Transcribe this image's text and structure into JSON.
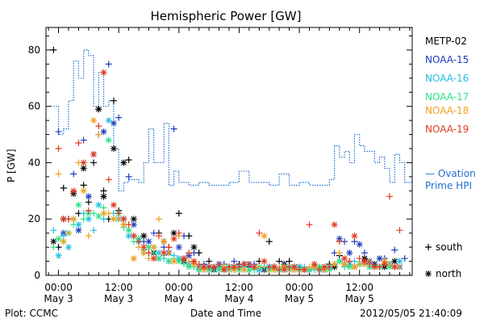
{
  "chart_data": {
    "type": "scatter",
    "title": "Hemispheric Power [GW]",
    "xlabel": "Date and Time",
    "ylabel": "P [GW]",
    "x_units": "hours since May 3 00:00",
    "xlim": [
      -2.5,
      70.5
    ],
    "ylim": [
      0,
      88
    ],
    "yticks": [
      0,
      20,
      40,
      60,
      80
    ],
    "xtick_labels": [
      {
        "x": 0,
        "time": "00:00",
        "date": "May 3"
      },
      {
        "x": 12,
        "time": "12:00",
        "date": "May 3"
      },
      {
        "x": 24,
        "time": "00:00",
        "date": "May 4"
      },
      {
        "x": 36,
        "time": "12:00",
        "date": "May 4"
      },
      {
        "x": 48,
        "time": "00:00",
        "date": "May 5"
      },
      {
        "x": 60,
        "time": "12:00",
        "date": "May 5"
      }
    ],
    "legend": {
      "satellites": [
        {
          "name": "METP-02",
          "color": "#000000"
        },
        {
          "name": "NOAA-15",
          "color": "#1f3fbf"
        },
        {
          "name": "NOAA-16",
          "color": "#1fbfe0"
        },
        {
          "name": "NOAA-17",
          "color": "#2fe08a"
        },
        {
          "name": "NOAA-18",
          "color": "#f0a020"
        },
        {
          "name": "NOAA-19",
          "color": "#e03a20"
        }
      ],
      "ovation_label_1": "— Ovation",
      "ovation_label_2": "Prime HPI",
      "ovation_color": "#1f6fd0",
      "south_label": "south",
      "north_label": "north"
    },
    "ovation_hpi": {
      "x": [
        -1,
        0,
        1,
        2,
        3,
        4,
        5,
        6,
        7,
        8,
        9,
        10,
        11,
        12,
        13,
        14,
        15,
        16,
        17,
        18,
        19,
        20,
        21,
        22,
        23,
        24,
        25,
        26,
        27,
        28,
        29,
        30,
        32,
        34,
        36,
        38,
        40,
        42,
        44,
        46,
        48,
        50,
        52,
        54,
        55,
        56,
        57,
        58,
        59,
        60,
        61,
        62,
        63,
        64,
        65,
        66,
        67,
        68,
        69,
        70
      ],
      "y": [
        60,
        50,
        52,
        62,
        76,
        70,
        80,
        78,
        60,
        72,
        60,
        62,
        45,
        30,
        33,
        34,
        34,
        33,
        40,
        52,
        40,
        40,
        54,
        32,
        37,
        33,
        33,
        32,
        32,
        33,
        33,
        32,
        32,
        33,
        37,
        33,
        33,
        32,
        36,
        32,
        33,
        32,
        32,
        34,
        46,
        42,
        44,
        40,
        50,
        46,
        44,
        44,
        40,
        42,
        38,
        33,
        43,
        40,
        33,
        33
      ]
    },
    "series": [
      {
        "satellite": "METP-02",
        "hemisphere": "south",
        "color": "#000000",
        "x": [
          -1,
          0,
          1,
          2,
          4,
          5,
          6,
          7,
          8,
          9,
          10,
          11,
          12,
          14,
          16,
          18,
          20,
          22,
          24,
          26,
          28,
          30,
          32,
          34,
          36,
          38,
          40,
          42,
          44,
          46,
          48,
          50,
          52,
          54,
          56,
          58,
          60,
          62,
          64,
          66
        ],
        "y": [
          80,
          10,
          31,
          20,
          22,
          32,
          26,
          40,
          59,
          30,
          20,
          62,
          23,
          41,
          12,
          8,
          15,
          10,
          22,
          14,
          8,
          5,
          3,
          3,
          4,
          3,
          5,
          12,
          5,
          5,
          3,
          2,
          3,
          4,
          7,
          5,
          4,
          5,
          3,
          4
        ]
      },
      {
        "satellite": "METP-02",
        "hemisphere": "north",
        "color": "#000000",
        "x": [
          -1,
          1,
          3,
          5,
          7,
          8,
          9,
          11,
          13,
          15,
          17,
          19,
          21,
          23,
          25,
          27,
          29,
          31,
          33,
          35,
          37,
          39,
          41,
          43,
          45,
          47,
          49,
          51,
          53,
          55,
          57,
          59,
          61,
          63,
          65,
          67
        ],
        "y": [
          12,
          20,
          29,
          38,
          43,
          59,
          28,
          45,
          40,
          20,
          14,
          8,
          12,
          15,
          5,
          10,
          3,
          2,
          2,
          3,
          4,
          3,
          2,
          3,
          4,
          3,
          2,
          3,
          2,
          3,
          4,
          3,
          6,
          4,
          3,
          5
        ]
      },
      {
        "satellite": "NOAA-15",
        "hemisphere": "south",
        "color": "#1f3fbf",
        "x": [
          0,
          3,
          5,
          8,
          10,
          12,
          14,
          17,
          19,
          21,
          23,
          25,
          27,
          29,
          31,
          33,
          35,
          37,
          39,
          41,
          43,
          45,
          47,
          49,
          51,
          53,
          55,
          57,
          59,
          61,
          63,
          65,
          67,
          69
        ],
        "y": [
          51,
          36,
          48,
          50,
          75,
          56,
          35,
          12,
          15,
          10,
          52,
          14,
          8,
          4,
          3,
          4,
          5,
          3,
          4,
          2,
          3,
          4,
          3,
          2,
          3,
          2,
          8,
          12,
          12,
          8,
          4,
          6,
          9,
          6
        ]
      },
      {
        "satellite": "NOAA-15",
        "hemisphere": "north",
        "color": "#1f3fbf",
        "x": [
          1,
          4,
          6,
          9,
          11,
          13,
          15,
          18,
          20,
          22,
          24,
          26,
          28,
          30,
          32,
          34,
          36,
          38,
          40,
          42,
          44,
          46,
          48,
          50,
          52,
          54,
          56,
          58,
          60,
          62,
          64,
          66,
          68
        ],
        "y": [
          15,
          16,
          28,
          51,
          54,
          20,
          18,
          12,
          6,
          8,
          10,
          7,
          3,
          3,
          4,
          3,
          3,
          4,
          2,
          3,
          2,
          3,
          3,
          2,
          2,
          3,
          13,
          8,
          11,
          5,
          6,
          4,
          3
        ]
      },
      {
        "satellite": "NOAA-16",
        "hemisphere": "south",
        "color": "#1fbfe0",
        "x": [
          -1,
          1,
          3,
          5,
          7,
          9,
          11,
          13,
          15,
          17,
          19,
          21,
          23,
          25,
          27,
          29,
          31,
          33,
          35,
          37,
          39,
          41,
          43,
          45,
          47,
          49,
          51,
          53,
          55,
          57,
          59,
          61,
          63,
          65,
          67
        ],
        "y": [
          16,
          14,
          20,
          22,
          16,
          20,
          22,
          18,
          14,
          8,
          10,
          6,
          7,
          5,
          3,
          3,
          2,
          3,
          2,
          3,
          2,
          3,
          2,
          3,
          2,
          3,
          2,
          3,
          4,
          3,
          5,
          4,
          3,
          4,
          3
        ]
      },
      {
        "satellite": "NOAA-16",
        "hemisphere": "north",
        "color": "#1fbfe0",
        "x": [
          0,
          2,
          4,
          6,
          8,
          10,
          12,
          14,
          16,
          18,
          20,
          22,
          24,
          26,
          28,
          30,
          32,
          34,
          36,
          38,
          40,
          42,
          44,
          46,
          48,
          50,
          52,
          54,
          56,
          58,
          60,
          62,
          64,
          66,
          68
        ],
        "y": [
          7,
          10,
          18,
          20,
          25,
          55,
          20,
          14,
          12,
          10,
          8,
          5,
          6,
          4,
          2,
          2,
          3,
          2,
          3,
          2,
          2,
          3,
          2,
          2,
          3,
          2,
          2,
          3,
          5,
          4,
          4,
          3,
          3,
          4,
          5
        ]
      },
      {
        "satellite": "NOAA-17",
        "hemisphere": "south",
        "color": "#2fe08a",
        "x": [
          -1,
          1,
          3,
          5,
          7,
          9,
          11,
          13,
          15,
          17,
          19,
          21,
          23,
          25,
          27,
          29,
          31,
          33,
          35,
          37,
          39,
          41,
          43,
          45,
          47,
          49,
          51,
          53,
          55,
          57,
          59,
          61,
          63,
          65
        ],
        "y": [
          10,
          12,
          18,
          20,
          22,
          24,
          20,
          17,
          12,
          9,
          8,
          7,
          6,
          4,
          3,
          2,
          3,
          2,
          3,
          2,
          2,
          3,
          2,
          2,
          3,
          2,
          2,
          3,
          4,
          3,
          3,
          4,
          3,
          4
        ]
      },
      {
        "satellite": "NOAA-17",
        "hemisphere": "north",
        "color": "#2fe08a",
        "x": [
          0,
          2,
          4,
          6,
          8,
          10,
          12,
          14,
          16,
          18,
          20,
          22,
          24,
          26,
          28,
          30,
          32,
          34,
          36,
          38,
          40,
          42,
          44,
          46,
          48,
          50,
          52,
          54,
          56,
          58,
          60,
          62,
          64,
          66
        ],
        "y": [
          13,
          15,
          25,
          22,
          21,
          48,
          22,
          16,
          13,
          10,
          6,
          5,
          5,
          3,
          2,
          2,
          2,
          3,
          2,
          2,
          3,
          2,
          2,
          3,
          2,
          2,
          3,
          2,
          5,
          3,
          4,
          3,
          3,
          3
        ]
      },
      {
        "satellite": "NOAA-18",
        "hemisphere": "south",
        "color": "#f0a020",
        "x": [
          0,
          2,
          4,
          6,
          8,
          10,
          12,
          14,
          16,
          18,
          20,
          22,
          24,
          26,
          28,
          30,
          32,
          34,
          36,
          38,
          40,
          42,
          44,
          46,
          48,
          50,
          52,
          54,
          56,
          58,
          60,
          62,
          64,
          66,
          68
        ],
        "y": [
          36,
          15,
          40,
          14,
          50,
          22,
          20,
          18,
          10,
          6,
          20,
          8,
          14,
          5,
          3,
          3,
          4,
          2,
          3,
          4,
          3,
          2,
          3,
          2,
          2,
          3,
          2,
          3,
          8,
          5,
          4,
          5,
          3,
          4,
          3
        ]
      },
      {
        "satellite": "NOAA-18",
        "hemisphere": "north",
        "color": "#f0a020",
        "x": [
          1,
          3,
          5,
          7,
          9,
          11,
          13,
          15,
          17,
          19,
          21,
          23,
          25,
          27,
          29,
          31,
          33,
          35,
          37,
          39,
          41,
          43,
          45,
          47,
          49,
          51,
          53,
          55,
          57,
          59,
          61,
          63,
          65,
          67
        ],
        "y": [
          12,
          20,
          30,
          55,
          22,
          20,
          18,
          6,
          8,
          10,
          12,
          5,
          6,
          4,
          2,
          3,
          3,
          2,
          2,
          3,
          14,
          2,
          3,
          2,
          2,
          3,
          2,
          4,
          4,
          3,
          4,
          3,
          5,
          3
        ]
      },
      {
        "satellite": "NOAA-19",
        "hemisphere": "south",
        "color": "#e03a20",
        "x": [
          0,
          2,
          4,
          6,
          8,
          10,
          12,
          14,
          16,
          18,
          20,
          22,
          24,
          26,
          28,
          30,
          32,
          34,
          36,
          38,
          40,
          42,
          44,
          46,
          48,
          50,
          52,
          54,
          56,
          58,
          60,
          62,
          64,
          66,
          68
        ],
        "y": [
          45,
          20,
          47,
          23,
          53,
          34,
          22,
          18,
          12,
          8,
          14,
          10,
          15,
          8,
          4,
          3,
          4,
          3,
          3,
          4,
          15,
          3,
          2,
          3,
          2,
          18,
          2,
          3,
          12,
          5,
          6,
          4,
          3,
          28,
          16
        ]
      },
      {
        "satellite": "NOAA-19",
        "hemisphere": "north",
        "color": "#e03a20",
        "x": [
          1,
          3,
          5,
          7,
          9,
          11,
          13,
          15,
          17,
          19,
          21,
          23,
          25,
          27,
          29,
          31,
          33,
          35,
          37,
          39,
          41,
          43,
          45,
          47,
          49,
          51,
          53,
          55,
          57,
          59,
          61,
          63,
          65,
          67
        ],
        "y": [
          20,
          30,
          40,
          43,
          72,
          25,
          20,
          14,
          10,
          6,
          8,
          13,
          6,
          5,
          3,
          3,
          2,
          3,
          4,
          3,
          5,
          3,
          2,
          3,
          2,
          4,
          3,
          18,
          6,
          14,
          5,
          3,
          4,
          3
        ]
      }
    ]
  },
  "footer": {
    "plot_source": "Plot: CCMC",
    "timestamp": "2012/05/05 21:40:09"
  }
}
